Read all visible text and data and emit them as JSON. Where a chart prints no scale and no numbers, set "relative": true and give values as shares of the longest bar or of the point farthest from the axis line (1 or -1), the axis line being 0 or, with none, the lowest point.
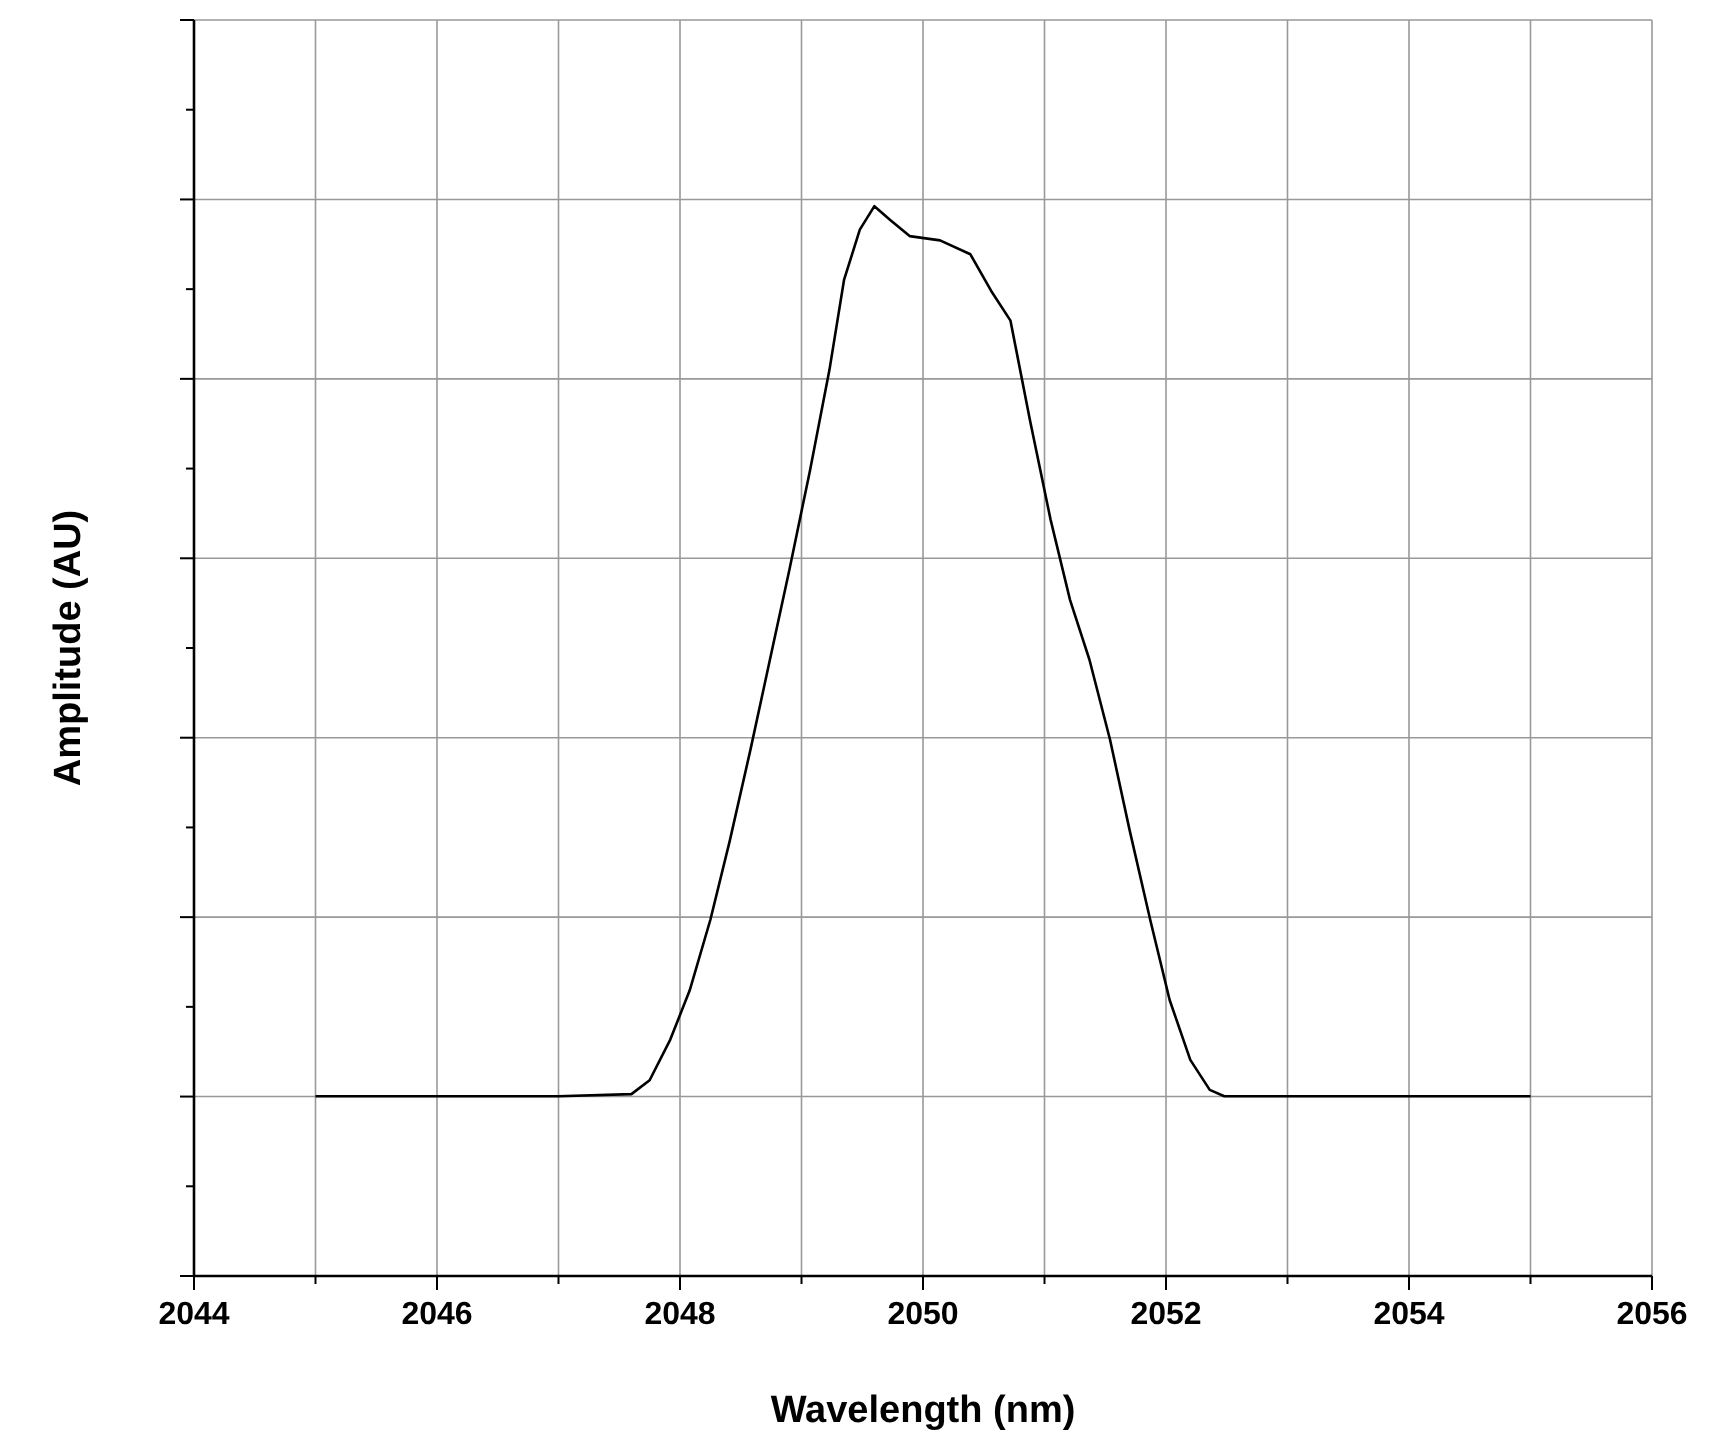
{
  "chart_data": {
    "type": "line",
    "xlabel": "Wavelength (nm)",
    "ylabel": "Amplitude (AU)",
    "relative": true,
    "grid": true,
    "marker": "none",
    "line_style": "solid",
    "tick_labels": "x",
    "xlim": [
      2044,
      2056
    ],
    "xticks": [
      2044,
      {
        "value": 2045,
        "label": null
      },
      2046,
      {
        "value": 2047,
        "label": null
      },
      2048,
      {
        "value": 2049,
        "label": null
      },
      2050,
      {
        "value": 2051,
        "label": null
      },
      2052,
      {
        "value": 2053,
        "label": null
      },
      2054,
      {
        "value": 2055,
        "label": null
      },
      2056
    ],
    "series": [
      {
        "color": "#000000",
        "x": [
          2045,
          2046,
          2047,
          2047.6,
          2047.75,
          2047.92,
          2048.08,
          2048.25,
          2048.41,
          2048.58,
          2048.74,
          2048.9,
          2049.07,
          2049.23,
          2049.35,
          2049.48,
          2049.6,
          2049.73,
          2049.89,
          2050.14,
          2050.39,
          2050.56,
          2050.72,
          2050.88,
          2051.05,
          2051.21,
          2051.37,
          2051.54,
          2051.7,
          2051.87,
          2052.03,
          2052.2,
          2052.36,
          2052.48,
          2053,
          2054,
          2055
        ],
        "values": [
          0.168,
          0.168,
          0.168,
          0.17,
          0.183,
          0.221,
          0.267,
          0.333,
          0.407,
          0.492,
          0.576,
          0.66,
          0.753,
          0.847,
          0.931,
          0.978,
          1,
          0.987,
          0.972,
          0.968,
          0.955,
          0.921,
          0.893,
          0.8,
          0.707,
          0.632,
          0.576,
          0.501,
          0.417,
          0.333,
          0.258,
          0.202,
          0.174,
          0.168,
          0.168,
          0.168,
          0.168
        ]
      }
    ]
  }
}
